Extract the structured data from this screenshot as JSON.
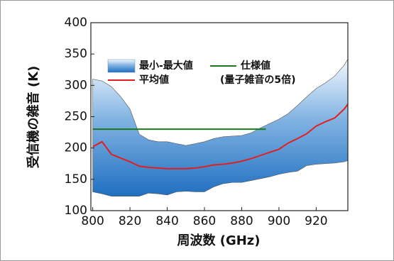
{
  "chart_data": {
    "type": "band",
    "x_label": "周波数 (GHz)",
    "y_label": "受信機の雑音 (K)",
    "x": [
      800,
      805,
      810,
      815,
      820,
      825,
      830,
      835,
      840,
      845,
      850,
      855,
      860,
      865,
      870,
      875,
      880,
      885,
      890,
      895,
      900,
      905,
      910,
      915,
      920,
      925,
      930,
      935,
      937
    ],
    "series": [
      {
        "name": "最小-最大値",
        "color": "#1f6fc0",
        "upper": [
          310,
          307,
          298,
          282,
          262,
          222,
          213,
          210,
          210,
          207,
          204,
          207,
          210,
          215,
          218,
          219,
          220,
          224,
          232,
          239,
          246,
          255,
          268,
          282,
          295,
          304,
          315,
          332,
          342
        ],
        "lower": [
          130,
          127,
          123,
          123,
          123,
          123,
          128,
          127,
          125,
          130,
          131,
          130,
          130,
          138,
          143,
          145,
          145,
          148,
          151,
          154,
          158,
          161,
          163,
          172,
          174,
          175,
          176,
          178,
          180
        ]
      },
      {
        "name": "平均値",
        "color": "#e02020",
        "values": [
          202,
          210,
          190,
          184,
          178,
          171,
          169,
          168,
          167,
          167,
          167,
          168,
          170,
          173,
          174,
          176,
          179,
          183,
          188,
          193,
          198,
          208,
          215,
          223,
          235,
          242,
          248,
          262,
          270
        ]
      },
      {
        "name": "仕様値",
        "note": "(量子雑音の5倍)",
        "color": "#1a7a1a",
        "x": [
          800,
          893
        ],
        "values": [
          230,
          230
        ]
      }
    ],
    "xlim": [
      799,
      937
    ],
    "ylim": [
      100,
      400
    ],
    "xticks": [
      800,
      820,
      840,
      860,
      880,
      900,
      920
    ],
    "yticks": [
      100,
      150,
      200,
      250,
      300,
      350,
      400
    ]
  }
}
